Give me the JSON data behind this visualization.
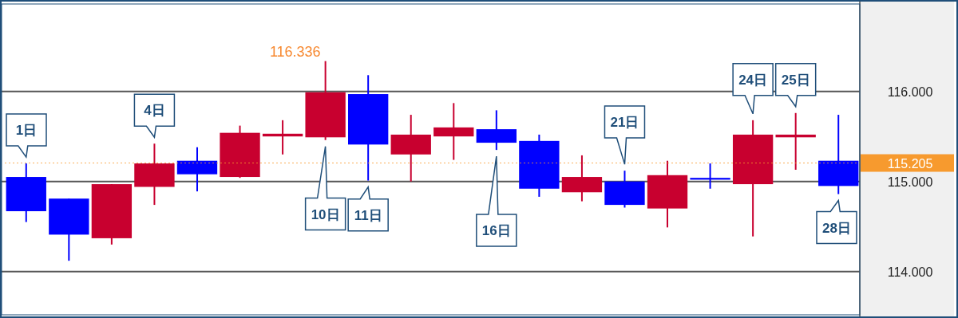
{
  "chart_data": {
    "type": "candlestick",
    "categories": [
      "1日",
      null,
      null,
      "4日",
      null,
      null,
      null,
      "10日",
      "11日",
      null,
      null,
      "16日",
      null,
      null,
      "21日",
      null,
      null,
      "24日",
      "25日",
      "28日"
    ],
    "ohlc": [
      [
        115.05,
        115.2,
        114.55,
        114.67
      ],
      [
        114.81,
        114.81,
        114.12,
        114.41
      ],
      [
        114.37,
        114.97,
        114.3,
        114.97
      ],
      [
        114.94,
        115.42,
        114.74,
        115.2
      ],
      [
        115.23,
        115.38,
        114.89,
        115.08
      ],
      [
        115.05,
        115.62,
        115.04,
        115.54
      ],
      [
        115.5,
        115.68,
        115.3,
        115.53
      ],
      [
        115.49,
        116.336,
        115.46,
        115.99
      ],
      [
        115.97,
        116.18,
        115.01,
        115.41
      ],
      [
        115.3,
        115.74,
        115.0,
        115.52
      ],
      [
        115.5,
        115.87,
        115.24,
        115.6
      ],
      [
        115.58,
        115.79,
        115.35,
        115.43
      ],
      [
        115.45,
        115.52,
        114.83,
        114.92
      ],
      [
        114.88,
        115.29,
        114.78,
        115.05
      ],
      [
        115.0,
        115.12,
        114.71,
        114.74
      ],
      [
        114.7,
        115.23,
        114.49,
        115.07
      ],
      [
        115.04,
        115.2,
        114.92,
        115.02
      ],
      [
        114.97,
        115.68,
        114.39,
        115.52
      ],
      [
        115.49,
        115.76,
        115.13,
        115.52
      ],
      [
        115.23,
        115.74,
        114.86,
        114.95
      ]
    ],
    "colors": [
      "#0000ff",
      "#0000ff",
      "#c8002f",
      "#c8002f",
      "#0000ff",
      "#c8002f",
      "#c8002f",
      "#c8002f",
      "#0000ff",
      "#c8002f",
      "#c8002f",
      "#0000ff",
      "#0000ff",
      "#c8002f",
      "#0000ff",
      "#c8002f",
      "#0000ff",
      "#c8002f",
      "#c8002f",
      "#0000ff"
    ],
    "ylim": [
      113.52,
      116.97
    ],
    "yticks": [
      {
        "value": 114,
        "label": "114.000"
      },
      {
        "value": 115,
        "label": "115.000"
      },
      {
        "value": 116,
        "label": "116.000"
      }
    ],
    "grid": "y",
    "ref_lines": [
      {
        "axis": "y",
        "value": 115.205,
        "label": "115.205",
        "color": "#f79a2e"
      }
    ],
    "annotations": [
      {
        "text": "116.336",
        "x": "10日",
        "y": 116.336
      }
    ]
  }
}
